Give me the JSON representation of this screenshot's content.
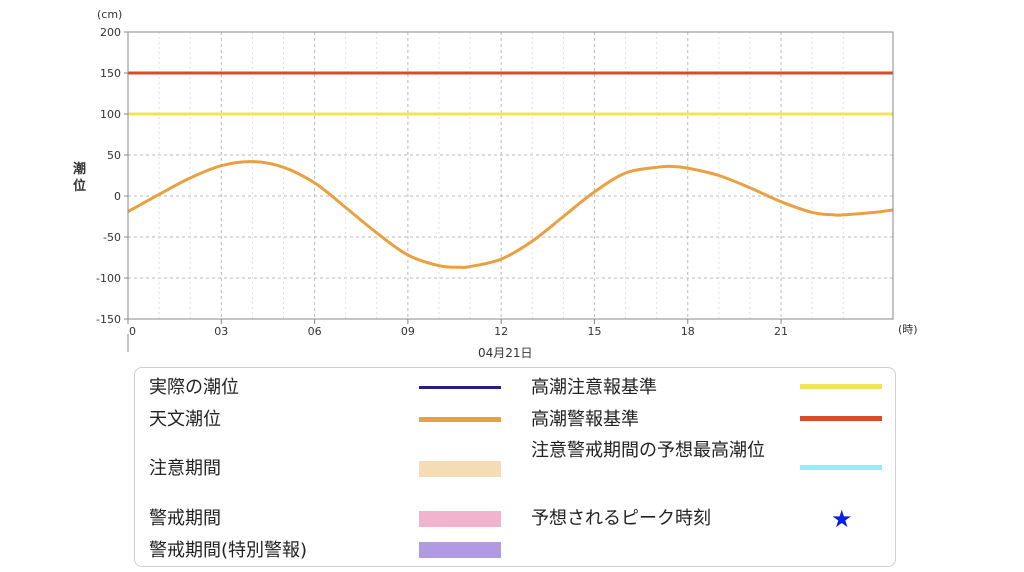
{
  "chart_data": {
    "type": "line",
    "y_unit": "(cm)",
    "ylabel": "潮位",
    "x_unit": "(時)",
    "date_label": "04月21日",
    "ylim": [
      -150,
      200
    ],
    "xlim": [
      0,
      24.6
    ],
    "y_ticks": [
      -150,
      -100,
      -50,
      0,
      50,
      100,
      150,
      200
    ],
    "x_ticks": [
      {
        "value": 0,
        "label": "0"
      },
      {
        "value": 3,
        "label": "03"
      },
      {
        "value": 6,
        "label": "06"
      },
      {
        "value": 9,
        "label": "09"
      },
      {
        "value": 12,
        "label": "12"
      },
      {
        "value": 15,
        "label": "15"
      },
      {
        "value": 18,
        "label": "18"
      },
      {
        "value": 21,
        "label": "21"
      }
    ],
    "grid": true,
    "thresholds": [
      {
        "name": "高潮警報基準",
        "value": 150,
        "color": "#d94a2e"
      },
      {
        "name": "高潮注意報基準",
        "value": 100,
        "color": "#f0e45a"
      }
    ],
    "series": [
      {
        "name": "天文潮位",
        "color": "#eaa040",
        "x": [
          0,
          1,
          2,
          3,
          4,
          5,
          6,
          7,
          8,
          9,
          10,
          10.7,
          11,
          12,
          13,
          14,
          15,
          16,
          17,
          17.5,
          18,
          19,
          20,
          21,
          22,
          22.7,
          23,
          24,
          24.6
        ],
        "y": [
          -19,
          2,
          22,
          37,
          42,
          35,
          16,
          -14,
          -45,
          -72,
          -85,
          -87,
          -86,
          -77,
          -55,
          -25,
          5,
          28,
          35,
          36,
          34,
          25,
          10,
          -7,
          -20,
          -23,
          -23,
          -20,
          -17
        ]
      }
    ]
  },
  "legend": {
    "items": [
      {
        "label": "実際の潮位",
        "swatch": "line",
        "color": "#2d1a8a"
      },
      {
        "label": "天文潮位",
        "swatch": "line",
        "color": "#eaa040"
      },
      {
        "label": "注意期間",
        "swatch": "band",
        "color": "#f6dcb4"
      },
      {
        "label": "警戒期間",
        "swatch": "band",
        "color": "#f2b4cc"
      },
      {
        "label": "警戒期間(特別警報)",
        "swatch": "band",
        "color": "#b09ae0"
      },
      {
        "label": "高潮注意報基準",
        "swatch": "line",
        "color": "#f0e45a"
      },
      {
        "label": "高潮警報基準",
        "swatch": "line",
        "color": "#d94a2e"
      },
      {
        "label": "注意警戒期間の予想最高潮位",
        "swatch": "line",
        "color": "#8ef0f4"
      },
      {
        "label": "予想されるピーク時刻",
        "swatch": "star",
        "icon": "star-icon",
        "color": "#0a1ee8"
      }
    ]
  }
}
